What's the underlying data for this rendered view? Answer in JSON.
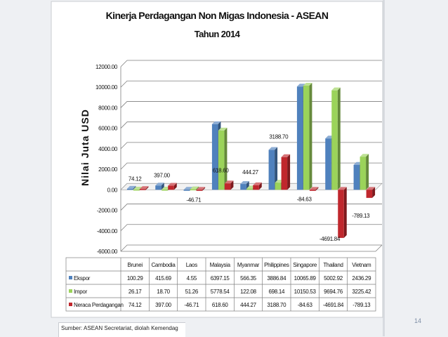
{
  "chart_data": {
    "type": "bar",
    "title": "Kinerja Perdagangan Non Migas Indonesia - ASEAN",
    "subtitle": "Tahun 2014",
    "xlabel": "",
    "ylabel": "Nilai Juta USD",
    "ylim": [
      -6000,
      12000
    ],
    "yticks": [
      "12000.00",
      "10000.00",
      "8000.00",
      "6000.00",
      "4000.00",
      "2000.00",
      "0.00",
      "-2000.00",
      "-4000.00",
      "-6000.00"
    ],
    "grid": true,
    "legend": "table-below",
    "categories": [
      "Brunei",
      "Cambodia",
      "Laos",
      "Malaysia",
      "Myanmar",
      "Philippines",
      "Singapore",
      "Thailand",
      "Vietnam"
    ],
    "series": [
      {
        "name": "Ekspor",
        "color": "#4f81bd",
        "values": [
          100.29,
          415.69,
          4.55,
          6397.15,
          566.35,
          3886.84,
          10065.89,
          5002.92,
          2436.29
        ],
        "labels": [
          "100.29",
          "415.69",
          "4.55",
          "6397.15",
          "566.35",
          "3886.84",
          "10065.89",
          "5002.92",
          "2436.29"
        ]
      },
      {
        "name": "Impor",
        "color": "#9bd35a",
        "values": [
          26.17,
          18.7,
          51.26,
          5778.54,
          122.08,
          698.14,
          10150.53,
          9694.76,
          3225.42
        ],
        "labels": [
          "26.17",
          "18.70",
          "51.26",
          "5778.54",
          "122.08",
          "698.14",
          "10150.53",
          "9694.76",
          "3225.42"
        ]
      },
      {
        "name": "Neraca Perdagangan",
        "color": "#c0272d",
        "values": [
          74.12,
          397.0,
          -46.71,
          618.6,
          444.27,
          3188.7,
          -84.63,
          -4691.84,
          -789.13
        ],
        "labels": [
          "74.12",
          "397.00",
          "-46.71",
          "618.60",
          "444.27",
          "3188.70",
          "-84.63",
          "-4691.84",
          "-789.13"
        ]
      }
    ]
  },
  "page": {
    "source": "Sumber: ASEAN Secretariat, diolah Kemendag",
    "page_number": "14"
  }
}
